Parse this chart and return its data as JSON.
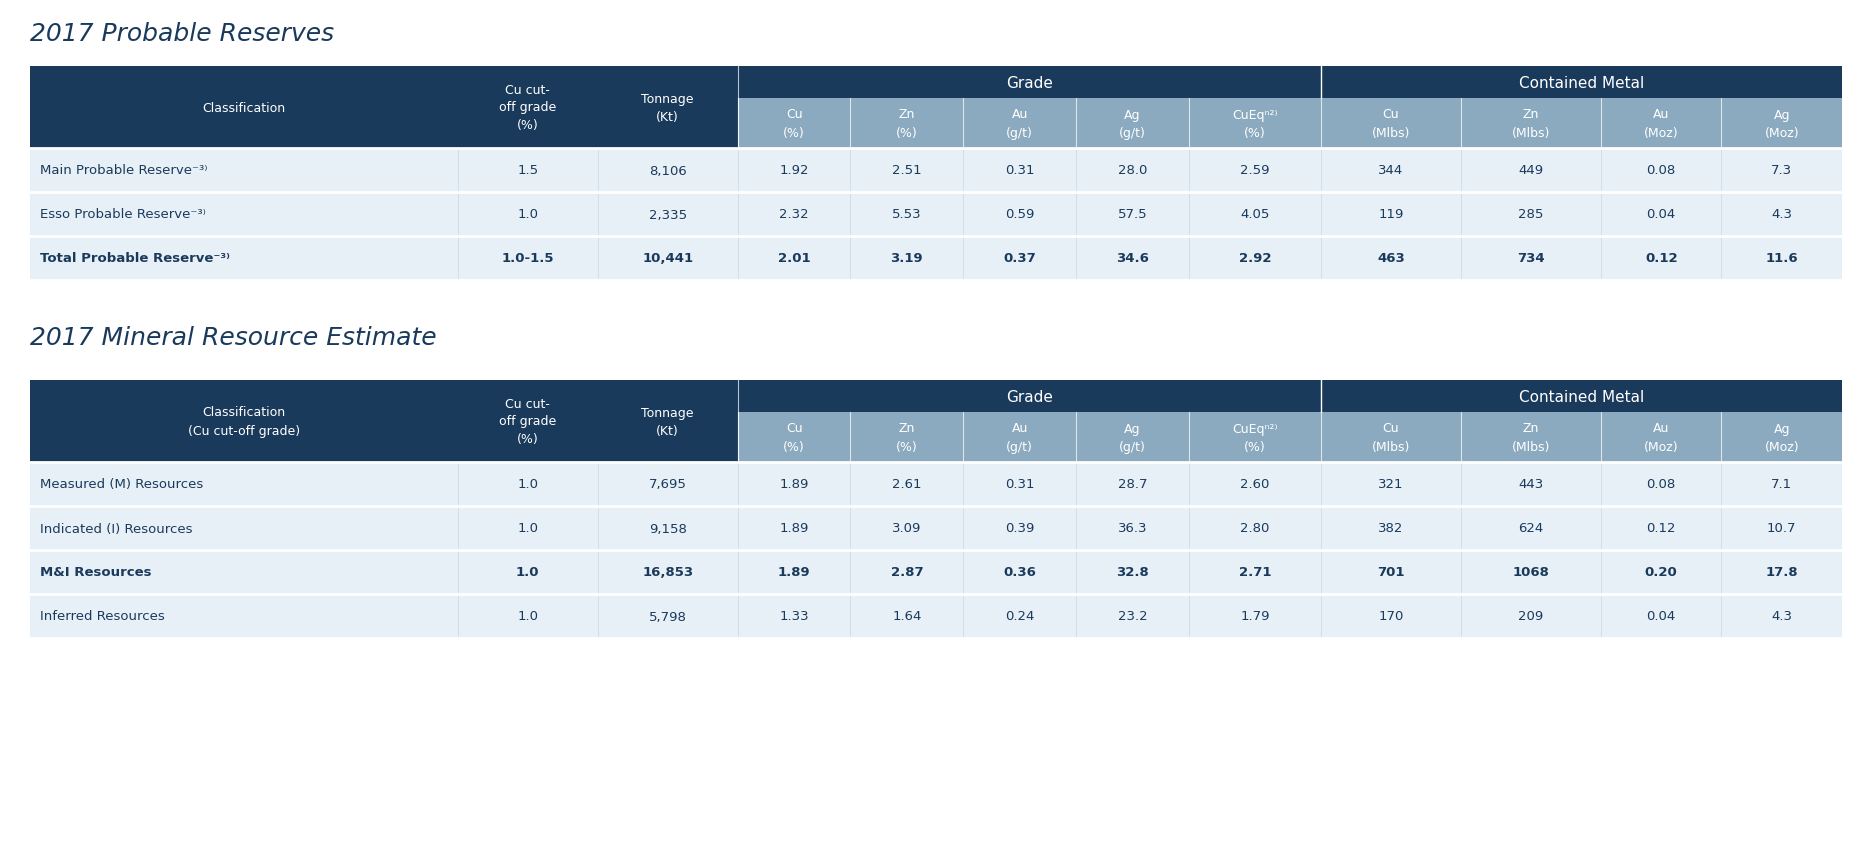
{
  "title1": "2017 Probable Reserves",
  "title2": "2017 Mineral Resource Estimate",
  "dark_blue": "#1a3a5c",
  "medium_blue": "#8baabf",
  "light_blue_header": "#a8bfcf",
  "row_bg_light": "#e8f0f7",
  "row_bg_white": "#f5f8fb",
  "white": "#FFFFFF",
  "text_dark": "#1a3a5c",
  "bg_page": "#FFFFFF",
  "table1": {
    "rows": [
      [
        "Main Probable Reserve⁻³⁾",
        "1.5",
        "8,106",
        "1.92",
        "2.51",
        "0.31",
        "28.0",
        "2.59",
        "344",
        "449",
        "0.08",
        "7.3"
      ],
      [
        "Esso Probable Reserve⁻³⁾",
        "1.0",
        "2,335",
        "2.32",
        "5.53",
        "0.59",
        "57.5",
        "4.05",
        "119",
        "285",
        "0.04",
        "4.3"
      ],
      [
        "Total Probable Reserve⁻³⁾",
        "1.0-1.5",
        "10,441",
        "2.01",
        "3.19",
        "0.37",
        "34.6",
        "2.92",
        "463",
        "734",
        "0.12",
        "11.6"
      ]
    ],
    "bold_rows": [
      2
    ]
  },
  "table2": {
    "rows": [
      [
        "Measured (M) Resources",
        "1.0",
        "7,695",
        "1.89",
        "2.61",
        "0.31",
        "28.7",
        "2.60",
        "321",
        "443",
        "0.08",
        "7.1"
      ],
      [
        "Indicated (I) Resources",
        "1.0",
        "9,158",
        "1.89",
        "3.09",
        "0.39",
        "36.3",
        "2.80",
        "382",
        "624",
        "0.12",
        "10.7"
      ],
      [
        "M&I Resources",
        "1.0",
        "16,853",
        "1.89",
        "2.87",
        "0.36",
        "32.8",
        "2.71",
        "701",
        "1068",
        "0.20",
        "17.8"
      ],
      [
        "Inferred Resources",
        "1.0",
        "5,798",
        "1.33",
        "1.64",
        "0.24",
        "23.2",
        "1.79",
        "170",
        "209",
        "0.04",
        "4.3"
      ]
    ],
    "bold_rows": [
      2
    ]
  },
  "col_widths_raw": [
    2.2,
    0.72,
    0.72,
    0.58,
    0.58,
    0.58,
    0.58,
    0.68,
    0.72,
    0.72,
    0.62,
    0.62
  ]
}
